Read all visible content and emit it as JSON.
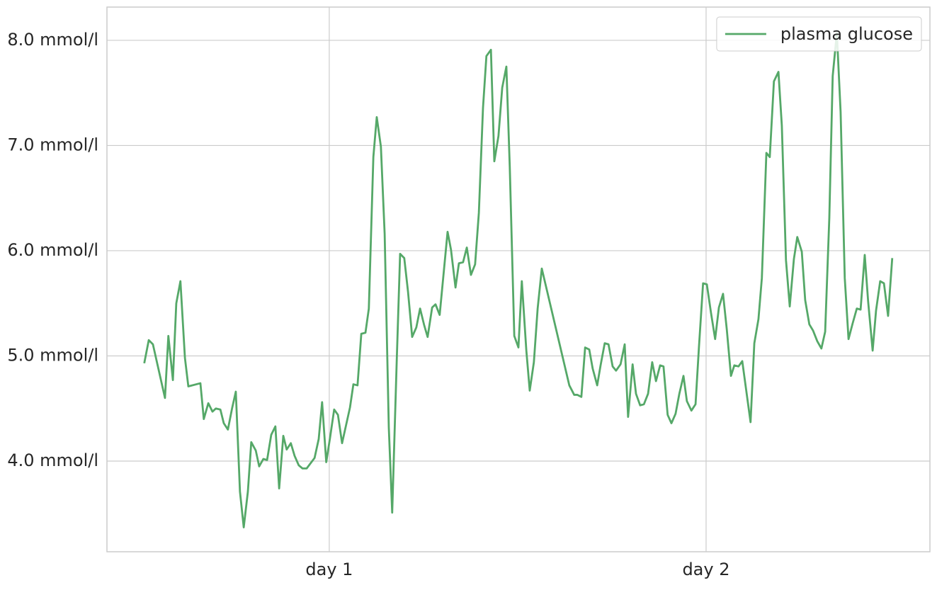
{
  "chart_data": {
    "type": "line",
    "x": [
      0.509,
      0.521,
      0.532,
      0.564,
      0.573,
      0.585,
      0.594,
      0.605,
      0.617,
      0.626,
      0.658,
      0.667,
      0.679,
      0.69,
      0.699,
      0.711,
      0.72,
      0.731,
      0.742,
      0.752,
      0.763,
      0.773,
      0.784,
      0.793,
      0.805,
      0.814,
      0.825,
      0.835,
      0.846,
      0.857,
      0.867,
      0.878,
      0.887,
      0.898,
      0.908,
      0.919,
      0.929,
      0.94,
      0.961,
      0.972,
      0.981,
      0.992,
      1.002,
      1.013,
      1.023,
      1.034,
      1.055,
      1.064,
      1.075,
      1.085,
      1.096,
      1.105,
      1.117,
      1.126,
      1.137,
      1.147,
      1.158,
      1.167,
      1.179,
      1.188,
      1.199,
      1.209,
      1.22,
      1.231,
      1.241,
      1.252,
      1.261,
      1.273,
      1.282,
      1.293,
      1.314,
      1.323,
      1.335,
      1.344,
      1.355,
      1.365,
      1.376,
      1.387,
      1.397,
      1.408,
      1.417,
      1.429,
      1.438,
      1.449,
      1.459,
      1.47,
      1.479,
      1.491,
      1.502,
      1.511,
      1.523,
      1.532,
      1.543,
      1.553,
      1.564,
      1.637,
      1.65,
      1.658,
      1.669,
      1.679,
      1.69,
      1.699,
      1.711,
      1.72,
      1.731,
      1.741,
      1.752,
      1.761,
      1.773,
      1.784,
      1.793,
      1.805,
      1.814,
      1.825,
      1.835,
      1.846,
      1.857,
      1.867,
      1.878,
      1.887,
      1.898,
      1.908,
      1.919,
      1.929,
      1.94,
      1.949,
      1.961,
      1.972,
      1.981,
      1.992,
      2.002,
      2.013,
      2.024,
      2.034,
      2.045,
      2.055,
      2.066,
      2.075,
      2.086,
      2.096,
      2.118,
      2.128,
      2.139,
      2.148,
      2.16,
      2.169,
      2.18,
      2.192,
      2.201,
      2.212,
      2.222,
      2.233,
      2.242,
      2.254,
      2.263,
      2.274,
      2.284,
      2.295,
      2.306,
      2.316,
      2.327,
      2.336,
      2.347,
      2.357,
      2.368,
      2.378,
      2.389,
      2.4,
      2.41,
      2.421,
      2.43,
      2.442,
      2.451,
      2.462,
      2.472,
      2.483,
      2.494
    ],
    "series": [
      {
        "name": "plasma glucose",
        "color": "#55a868",
        "values": [
          4.93,
          5.15,
          5.11,
          4.6,
          5.19,
          4.77,
          5.5,
          5.71,
          4.98,
          4.71,
          4.74,
          4.4,
          4.55,
          4.47,
          4.5,
          4.49,
          4.36,
          4.3,
          4.5,
          4.66,
          3.71,
          3.37,
          3.71,
          4.18,
          4.1,
          3.95,
          4.02,
          4.01,
          4.25,
          4.33,
          3.74,
          4.24,
          4.11,
          4.17,
          4.05,
          3.96,
          3.93,
          3.93,
          4.03,
          4.21,
          4.56,
          3.99,
          4.22,
          4.49,
          4.44,
          4.17,
          4.51,
          4.73,
          4.72,
          5.21,
          5.22,
          5.45,
          6.89,
          7.27,
          6.99,
          6.16,
          4.32,
          3.51,
          4.95,
          5.97,
          5.93,
          5.61,
          5.18,
          5.27,
          5.45,
          5.29,
          5.18,
          5.46,
          5.49,
          5.39,
          6.18,
          6.01,
          5.65,
          5.88,
          5.89,
          6.03,
          5.77,
          5.87,
          6.36,
          7.36,
          7.85,
          7.91,
          6.85,
          7.09,
          7.55,
          7.75,
          6.8,
          5.19,
          5.08,
          5.71,
          5.05,
          4.67,
          4.94,
          5.45,
          5.83,
          4.72,
          4.63,
          4.63,
          4.61,
          5.08,
          5.06,
          4.88,
          4.72,
          4.91,
          5.12,
          5.11,
          4.9,
          4.86,
          4.92,
          5.11,
          4.42,
          4.92,
          4.64,
          4.53,
          4.54,
          4.64,
          4.94,
          4.76,
          4.91,
          4.9,
          4.44,
          4.36,
          4.45,
          4.64,
          4.81,
          4.57,
          4.48,
          4.54,
          5.08,
          5.69,
          5.68,
          5.41,
          5.16,
          5.46,
          5.59,
          5.25,
          4.81,
          4.91,
          4.9,
          4.95,
          4.37,
          5.12,
          5.35,
          5.74,
          6.93,
          6.89,
          7.61,
          7.7,
          7.19,
          5.91,
          5.47,
          5.92,
          6.13,
          5.99,
          5.53,
          5.3,
          5.24,
          5.14,
          5.07,
          5.23,
          6.31,
          7.66,
          8.07,
          7.32,
          5.74,
          5.16,
          5.31,
          5.45,
          5.44,
          5.96,
          5.52,
          5.05,
          5.43,
          5.71,
          5.69,
          5.38,
          5.93
        ]
      }
    ],
    "xlim": [
      0.41,
      2.594
    ],
    "xticks": [
      {
        "value": 1,
        "label": "day 1"
      },
      {
        "value": 2,
        "label": "day 2"
      }
    ],
    "ylim": [
      3.138,
      8.316
    ],
    "yticks": [
      {
        "value": 4,
        "label": "4.0 mmol/l"
      },
      {
        "value": 5,
        "label": "5.0 mmol/l"
      },
      {
        "value": 6,
        "label": "6.0 mmol/l"
      },
      {
        "value": 7,
        "label": "7.0 mmol/l"
      },
      {
        "value": 8,
        "label": "8.0 mmol/l"
      }
    ],
    "grid": true,
    "legend": "upper right"
  }
}
